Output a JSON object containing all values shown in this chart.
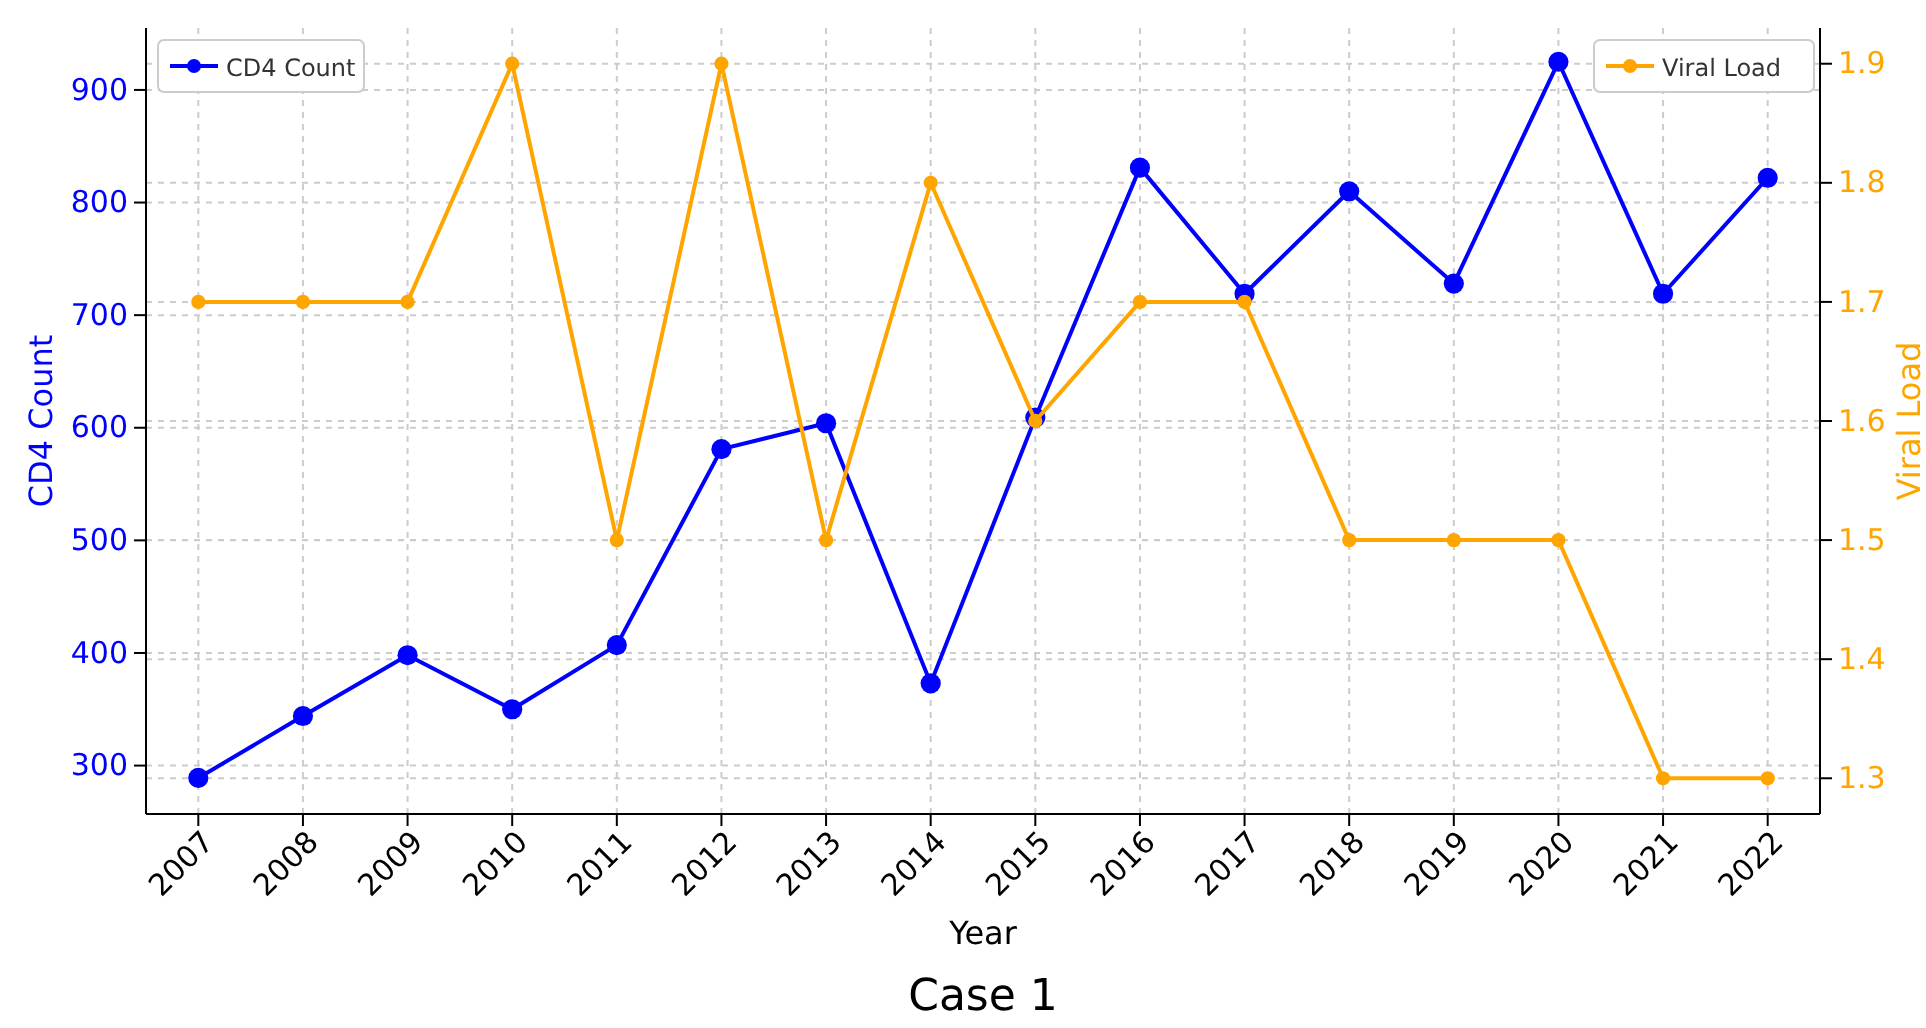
{
  "chart_data": {
    "type": "line",
    "xlabel": "Year",
    "ylabel": "CD4 Count",
    "y2label": "Viral Load",
    "categories": [
      "2007",
      "2008",
      "2009",
      "2010",
      "2011",
      "2012",
      "2013",
      "2014",
      "2015",
      "2016",
      "2017",
      "2018",
      "2019",
      "2020",
      "2021",
      "2022"
    ],
    "series": [
      {
        "name": "CD4 Count",
        "color": "#0000ff",
        "values": [
          289,
          344,
          398,
          350,
          407,
          581,
          604,
          373,
          609,
          831,
          719,
          810,
          728,
          925,
          719,
          822
        ]
      },
      {
        "name": "Viral Load",
        "color": "#ffa500",
        "axis": "y2",
        "values": [
          1.7,
          1.7,
          1.7,
          1.9,
          1.5,
          1.9,
          1.5,
          1.8,
          1.6,
          1.7,
          1.7,
          1.5,
          1.5,
          1.5,
          1.3,
          1.3
        ]
      }
    ],
    "ylim": [
      257,
      955
    ],
    "yticks": [
      300,
      400,
      500,
      600,
      700,
      800,
      900
    ],
    "y2lim": [
      1.27,
      1.93
    ],
    "y2ticks": [
      1.3,
      1.4,
      1.5,
      1.6,
      1.7,
      1.8,
      1.9
    ],
    "grid": true,
    "legend": "top",
    "marker": "circle",
    "line_style": "solid",
    "annotations": [
      "Case 1"
    ]
  }
}
